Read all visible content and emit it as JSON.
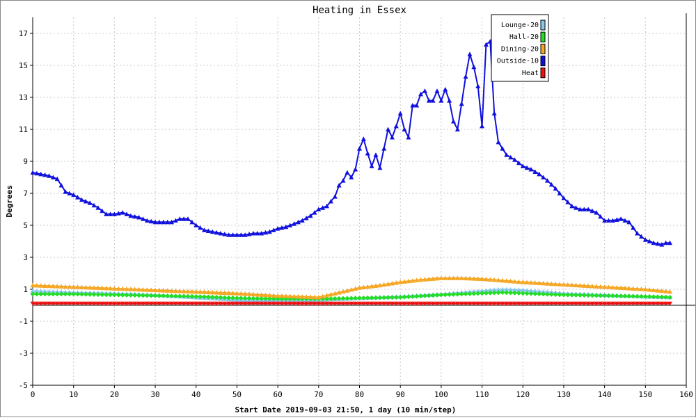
{
  "chart_data": {
    "type": "line",
    "title": "Heating in Essex",
    "xlabel": "Start Date 2019-09-03 21:50, 1 day (10 min/step)",
    "ylabel": "Degrees",
    "xlim": [
      0,
      160
    ],
    "ylim": [
      -5,
      18
    ],
    "xticks": [
      0,
      10,
      20,
      30,
      40,
      50,
      60,
      70,
      80,
      90,
      100,
      110,
      120,
      130,
      140,
      150,
      160
    ],
    "yticks": [
      -5,
      -3,
      -1,
      1,
      3,
      5,
      7,
      9,
      11,
      13,
      15,
      17
    ],
    "grid": true,
    "legend_position": "top-right",
    "series": [
      {
        "name": "Lounge-20",
        "color": "#87c8f0",
        "marker": "triangle",
        "x": [
          0,
          10,
          20,
          30,
          40,
          50,
          60,
          70,
          80,
          90,
          100,
          105,
          110,
          115,
          120,
          130,
          140,
          150,
          156
        ],
        "y": [
          0.9,
          0.8,
          0.75,
          0.65,
          0.5,
          0.35,
          0.3,
          0.35,
          0.45,
          0.55,
          0.7,
          0.8,
          0.9,
          1.0,
          0.95,
          0.75,
          0.65,
          0.55,
          0.5
        ]
      },
      {
        "name": "Hall-20",
        "color": "#22dd22",
        "marker": "diamond",
        "x": [
          0,
          10,
          20,
          30,
          40,
          50,
          60,
          70,
          80,
          90,
          100,
          105,
          110,
          115,
          120,
          130,
          140,
          150,
          156
        ],
        "y": [
          0.7,
          0.7,
          0.65,
          0.6,
          0.55,
          0.45,
          0.4,
          0.4,
          0.45,
          0.5,
          0.65,
          0.7,
          0.75,
          0.8,
          0.75,
          0.65,
          0.6,
          0.55,
          0.5
        ]
      },
      {
        "name": "Dining-20",
        "color": "#f5a623",
        "marker": "triangle",
        "x": [
          0,
          10,
          20,
          30,
          40,
          50,
          60,
          70,
          75,
          80,
          85,
          90,
          95,
          100,
          105,
          110,
          115,
          120,
          130,
          140,
          150,
          156
        ],
        "y": [
          1.25,
          1.15,
          1.05,
          0.95,
          0.85,
          0.75,
          0.6,
          0.5,
          0.8,
          1.1,
          1.25,
          1.45,
          1.6,
          1.7,
          1.7,
          1.65,
          1.55,
          1.45,
          1.3,
          1.15,
          1.0,
          0.85
        ]
      },
      {
        "name": "Outside-10",
        "color": "#1010dd",
        "marker": "triangle",
        "x": [
          0,
          2,
          4,
          6,
          8,
          10,
          12,
          14,
          16,
          18,
          20,
          22,
          24,
          26,
          28,
          30,
          32,
          34,
          36,
          38,
          40,
          42,
          44,
          46,
          48,
          50,
          52,
          54,
          56,
          58,
          60,
          62,
          64,
          66,
          68,
          70,
          72,
          74,
          75,
          76,
          77,
          78,
          79,
          80,
          81,
          82,
          83,
          84,
          85,
          86,
          87,
          88,
          89,
          90,
          91,
          92,
          93,
          94,
          95,
          96,
          97,
          98,
          99,
          100,
          101,
          102,
          103,
          104,
          105,
          106,
          107,
          108,
          109,
          110,
          111,
          112,
          113,
          114,
          115,
          116,
          118,
          120,
          122,
          124,
          126,
          128,
          130,
          132,
          134,
          136,
          138,
          140,
          142,
          144,
          146,
          148,
          150,
          152,
          154,
          155,
          156
        ],
        "y": [
          8.3,
          8.2,
          8.1,
          7.9,
          7.1,
          6.9,
          6.6,
          6.4,
          6.1,
          5.7,
          5.7,
          5.8,
          5.6,
          5.5,
          5.3,
          5.2,
          5.2,
          5.2,
          5.4,
          5.4,
          5.0,
          4.7,
          4.6,
          4.5,
          4.4,
          4.4,
          4.4,
          4.5,
          4.5,
          4.6,
          4.8,
          4.9,
          5.1,
          5.3,
          5.6,
          6.0,
          6.2,
          6.8,
          7.5,
          7.8,
          8.3,
          8.0,
          8.5,
          9.8,
          10.4,
          9.5,
          8.7,
          9.4,
          8.6,
          9.8,
          11.0,
          10.5,
          11.2,
          12.0,
          11.0,
          10.5,
          12.5,
          12.5,
          13.2,
          13.4,
          12.8,
          12.8,
          13.4,
          12.8,
          13.5,
          12.8,
          11.5,
          11.0,
          12.6,
          14.3,
          15.7,
          14.9,
          13.7,
          11.2,
          16.3,
          16.5,
          12.0,
          10.2,
          9.8,
          9.4,
          9.1,
          8.7,
          8.5,
          8.2,
          7.8,
          7.3,
          6.7,
          6.2,
          6.0,
          6.0,
          5.8,
          5.3,
          5.3,
          5.4,
          5.2,
          4.5,
          4.1,
          3.9,
          3.8,
          3.9,
          3.9
        ]
      },
      {
        "name": "Heat",
        "color": "#ee1111",
        "marker": "triangle-down",
        "x": [
          0,
          20,
          40,
          60,
          80,
          100,
          120,
          140,
          156
        ],
        "y": [
          0.1,
          0.1,
          0.1,
          0.1,
          0.1,
          0.1,
          0.1,
          0.1,
          0.1
        ]
      }
    ]
  }
}
